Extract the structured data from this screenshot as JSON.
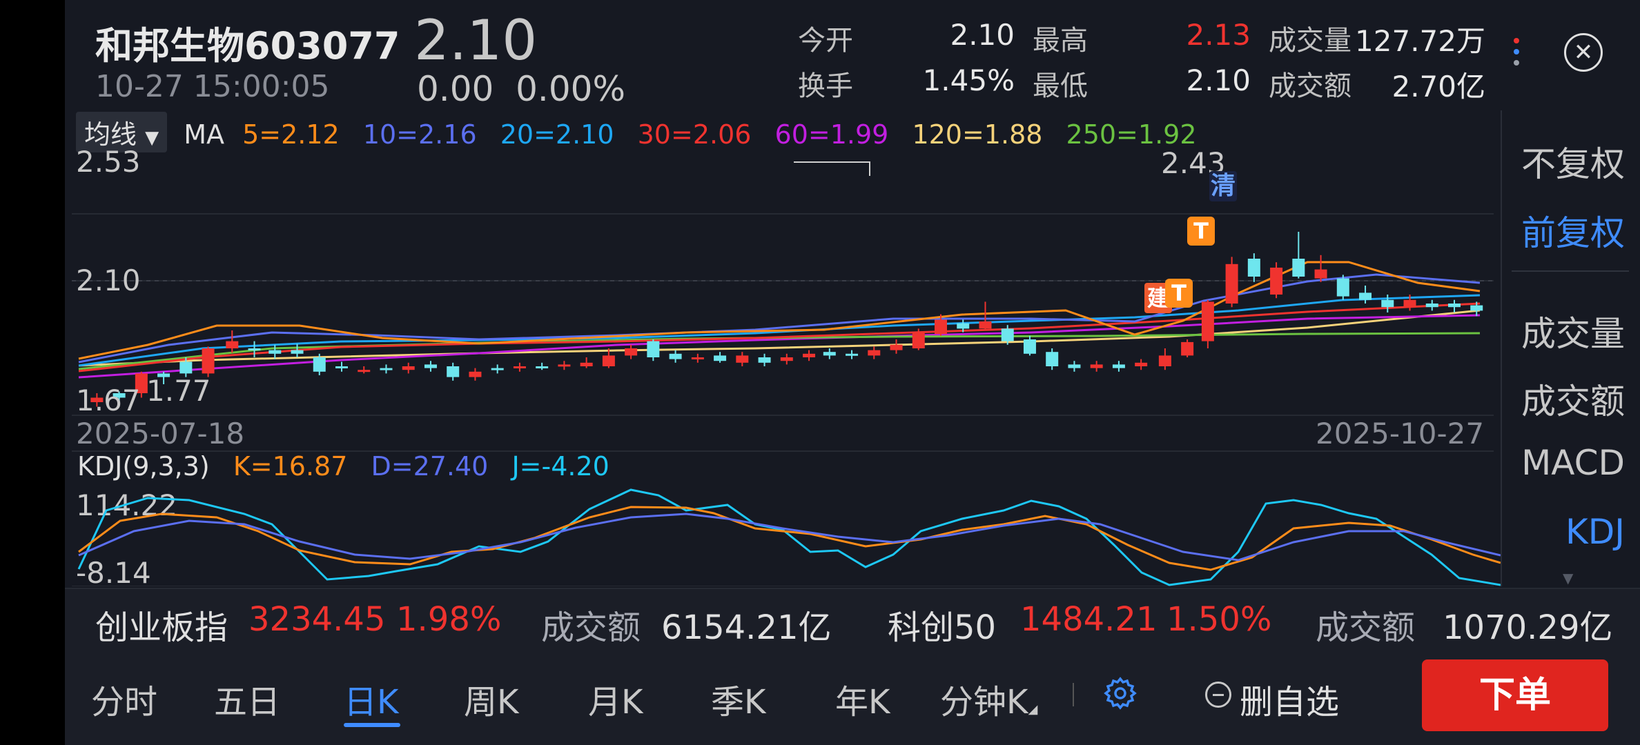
{
  "header": {
    "stock_name_code": "和邦生物603077",
    "last_price": "2.10",
    "timestamp": "10-27 15:00:05",
    "change": "0.00",
    "change_pct": "0.00%",
    "quote": {
      "open_label": "今开",
      "open": "2.10",
      "high_label": "最高",
      "high": "2.13",
      "volume_label": "成交量",
      "volume": "127.72万",
      "turnover_label": "换手",
      "turnover": "1.45%",
      "low_label": "最低",
      "low": "2.10",
      "amount_label": "成交额",
      "amount": "2.70亿"
    },
    "close_symbol": "✕"
  },
  "ma": {
    "selector_label": "均线",
    "title": "MA",
    "values": [
      {
        "label": "5=2.12",
        "color": "#ff8c1a"
      },
      {
        "label": "10=2.16",
        "color": "#5b6ff0"
      },
      {
        "label": "20=2.10",
        "color": "#1ea7f5"
      },
      {
        "label": "30=2.06",
        "color": "#f0332f"
      },
      {
        "label": "60=1.99",
        "color": "#c21fe0"
      },
      {
        "label": "120=1.88",
        "color": "#f5d27a"
      },
      {
        "label": "250=1.92",
        "color": "#6bc241"
      }
    ]
  },
  "main_chart": {
    "y_top_label": "2.53",
    "y_mid_label": "2.10",
    "y_bottom_label": "1.67",
    "low_marker": "1.77",
    "high_marker": "2.43",
    "date_start": "2025-07-18",
    "date_end": "2025-10-27",
    "signal_qing": "清",
    "signal_t": "T",
    "signal_jian": "建"
  },
  "kdj": {
    "title": "KDJ(9,3,3)",
    "k": "K=16.87",
    "d": "D=27.40",
    "j": "J=-4.20",
    "y_top_label": "114.22",
    "y_bottom_label": "-8.14",
    "colors": {
      "k": "#ff8c1a",
      "d": "#5b6ff0",
      "j": "#1ec8f5"
    }
  },
  "right_panel": {
    "items": [
      "不复权",
      "前复权",
      "成交量",
      "成交额",
      "MACD",
      "KDJ"
    ]
  },
  "index_bar": {
    "idx1_name": "创业板指",
    "idx1_value": "3234.45",
    "idx1_pct": "1.98%",
    "amount1_label": "成交额",
    "amount1_value": "6154.21亿",
    "idx2_name": "科创50",
    "idx2_value": "1484.21",
    "idx2_pct": "1.50%",
    "amount2_label": "成交额",
    "amount2_value": "1070.29亿"
  },
  "tabs": [
    "分时",
    "五日",
    "日K",
    "周K",
    "月K",
    "季K",
    "年K",
    "分钟K"
  ],
  "remove_watch_label": "删自选",
  "order_label": "下单",
  "colors": {
    "up": "#f0332f",
    "down": "#6ee6ee",
    "accent": "#3f8cff",
    "order": "#e0251f"
  }
}
